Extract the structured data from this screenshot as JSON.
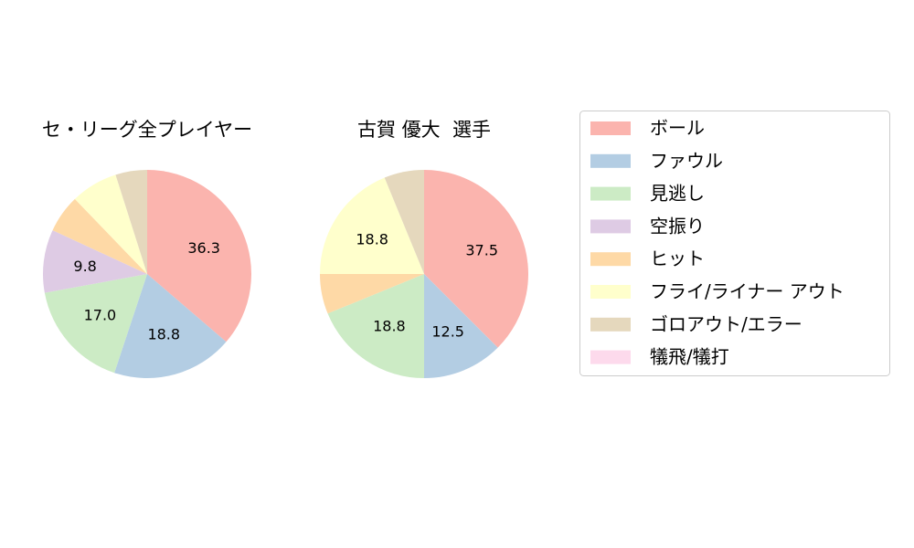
{
  "chart_data": [
    {
      "type": "pie",
      "title": "セ・リーグ全プレイヤー",
      "slices": [
        {
          "label": "ボール",
          "value": 36.3,
          "shown_label": "36.3"
        },
        {
          "label": "ファウル",
          "value": 18.8,
          "shown_label": "18.8"
        },
        {
          "label": "見逃し",
          "value": 17.0,
          "shown_label": "17.0"
        },
        {
          "label": "空振り",
          "value": 9.8,
          "shown_label": "9.8"
        },
        {
          "label": "ヒット",
          "value": 5.9,
          "shown_label": ""
        },
        {
          "label": "フライ/ライナー アウト",
          "value": 7.3,
          "shown_label": ""
        },
        {
          "label": "ゴロアウト/エラー",
          "value": 4.9,
          "shown_label": ""
        },
        {
          "label": "犠飛/犠打",
          "value": 0.0,
          "shown_label": ""
        }
      ]
    },
    {
      "type": "pie",
      "title": "古賀 優大  選手",
      "slices": [
        {
          "label": "ボール",
          "value": 37.5,
          "shown_label": "37.5"
        },
        {
          "label": "ファウル",
          "value": 12.5,
          "shown_label": "12.5"
        },
        {
          "label": "見逃し",
          "value": 18.8,
          "shown_label": "18.8"
        },
        {
          "label": "空振り",
          "value": 0.0,
          "shown_label": ""
        },
        {
          "label": "ヒット",
          "value": 6.2,
          "shown_label": ""
        },
        {
          "label": "フライ/ライナー アウト",
          "value": 18.8,
          "shown_label": "18.8"
        },
        {
          "label": "ゴロアウト/エラー",
          "value": 6.2,
          "shown_label": ""
        },
        {
          "label": "犠飛/犠打",
          "value": 0.0,
          "shown_label": ""
        }
      ]
    }
  ],
  "legend": {
    "placement": "right",
    "items": [
      {
        "label": "ボール",
        "color": "#fbb4ae"
      },
      {
        "label": "ファウル",
        "color": "#b3cde3"
      },
      {
        "label": "見逃し",
        "color": "#ccebc5"
      },
      {
        "label": "空振り",
        "color": "#decbe4"
      },
      {
        "label": "ヒット",
        "color": "#fed9a6"
      },
      {
        "label": "フライ/ライナー アウト",
        "color": "#ffffcc"
      },
      {
        "label": "ゴロアウト/エラー",
        "color": "#e5d8bd"
      },
      {
        "label": "犠飛/犠打",
        "color": "#fddaec"
      }
    ]
  }
}
